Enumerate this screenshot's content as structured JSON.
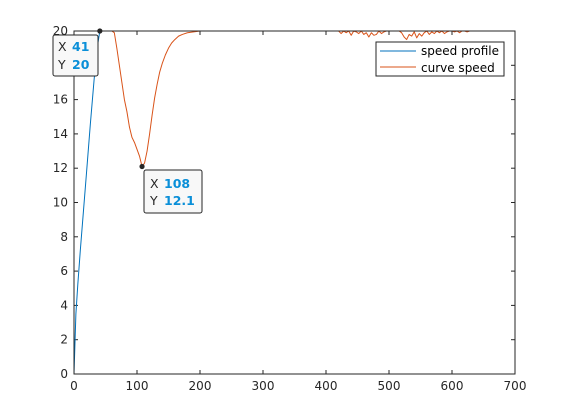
{
  "chart_data": {
    "type": "line",
    "title": "",
    "xlabel": "",
    "ylabel": "",
    "xlim": [
      0,
      700
    ],
    "ylim": [
      0,
      20
    ],
    "xticks": [
      0,
      100,
      200,
      300,
      400,
      500,
      600,
      700
    ],
    "yticks": [
      0,
      2,
      4,
      6,
      8,
      10,
      12,
      14,
      16,
      18,
      20
    ],
    "grid": false,
    "legend": {
      "placement": "top-right",
      "entries": [
        "speed profile",
        "curve speed"
      ]
    },
    "series": [
      {
        "name": "speed profile",
        "color": "#0072bd",
        "x": [
          0,
          3,
          6,
          10,
          15,
          20,
          26,
          32,
          38,
          41,
          50,
          60,
          64,
          66,
          68,
          72,
          80,
          200,
          400,
          700
        ],
        "y": [
          0,
          3.5,
          5.2,
          7.2,
          9.5,
          11.8,
          14.6,
          17.2,
          19.3,
          20,
          20,
          20,
          20,
          20,
          20,
          20,
          20,
          20,
          20,
          20
        ]
      },
      {
        "name": "curve speed",
        "color": "#d95319",
        "x": [
          0,
          1,
          2,
          3,
          60,
          64,
          68,
          72,
          76,
          80,
          84,
          88,
          92,
          96,
          100,
          104,
          108,
          112,
          116,
          120,
          124,
          128,
          132,
          136,
          140,
          145,
          150,
          155,
          160,
          166,
          172,
          180,
          190,
          200,
          215,
          235,
          260,
          300,
          400,
          420,
          424,
          428,
          432,
          436,
          440,
          444,
          448,
          452,
          456,
          460,
          464,
          468,
          472,
          476,
          480,
          484,
          488,
          492,
          496,
          500,
          504,
          508,
          512,
          516,
          520,
          524,
          528,
          532,
          536,
          540,
          544,
          548,
          552,
          556,
          560,
          564,
          568,
          572,
          576,
          580,
          584,
          588,
          592,
          596,
          600,
          604,
          608,
          612,
          616,
          620,
          624,
          628,
          632,
          636,
          640,
          650,
          700
        ],
        "y": [
          20,
          20,
          20,
          20,
          20,
          19.9,
          19.0,
          18.0,
          17.0,
          16.0,
          15.3,
          14.4,
          13.8,
          13.5,
          13.1,
          12.7,
          12.1,
          12.3,
          13.0,
          14.0,
          15.1,
          16.1,
          16.9,
          17.6,
          18.1,
          18.6,
          19.0,
          19.3,
          19.5,
          19.7,
          19.8,
          19.9,
          19.95,
          20,
          20,
          20,
          20,
          20,
          20,
          20,
          19.85,
          20,
          19.9,
          20,
          19.75,
          20,
          19.95,
          19.85,
          20,
          19.8,
          19.9,
          19.65,
          19.9,
          19.75,
          19.8,
          20,
          19.85,
          19.95,
          20,
          20,
          20,
          20,
          20,
          20,
          19.9,
          19.65,
          19.5,
          19.8,
          19.7,
          19.95,
          19.6,
          19.85,
          19.7,
          19.9,
          20,
          19.8,
          19.95,
          19.85,
          20,
          19.9,
          20,
          19.85,
          19.95,
          20,
          20,
          19.95,
          20,
          19.9,
          20,
          20,
          19.95,
          20,
          20,
          20,
          20,
          20,
          20
        ]
      }
    ],
    "datatips": [
      {
        "x": 41,
        "y": 20,
        "x_label": "X",
        "y_label": "Y",
        "x_value": "41",
        "y_value": "20"
      },
      {
        "x": 108,
        "y": 12.1,
        "x_label": "X",
        "y_label": "Y",
        "x_value": "108",
        "y_value": "12.1"
      }
    ]
  }
}
